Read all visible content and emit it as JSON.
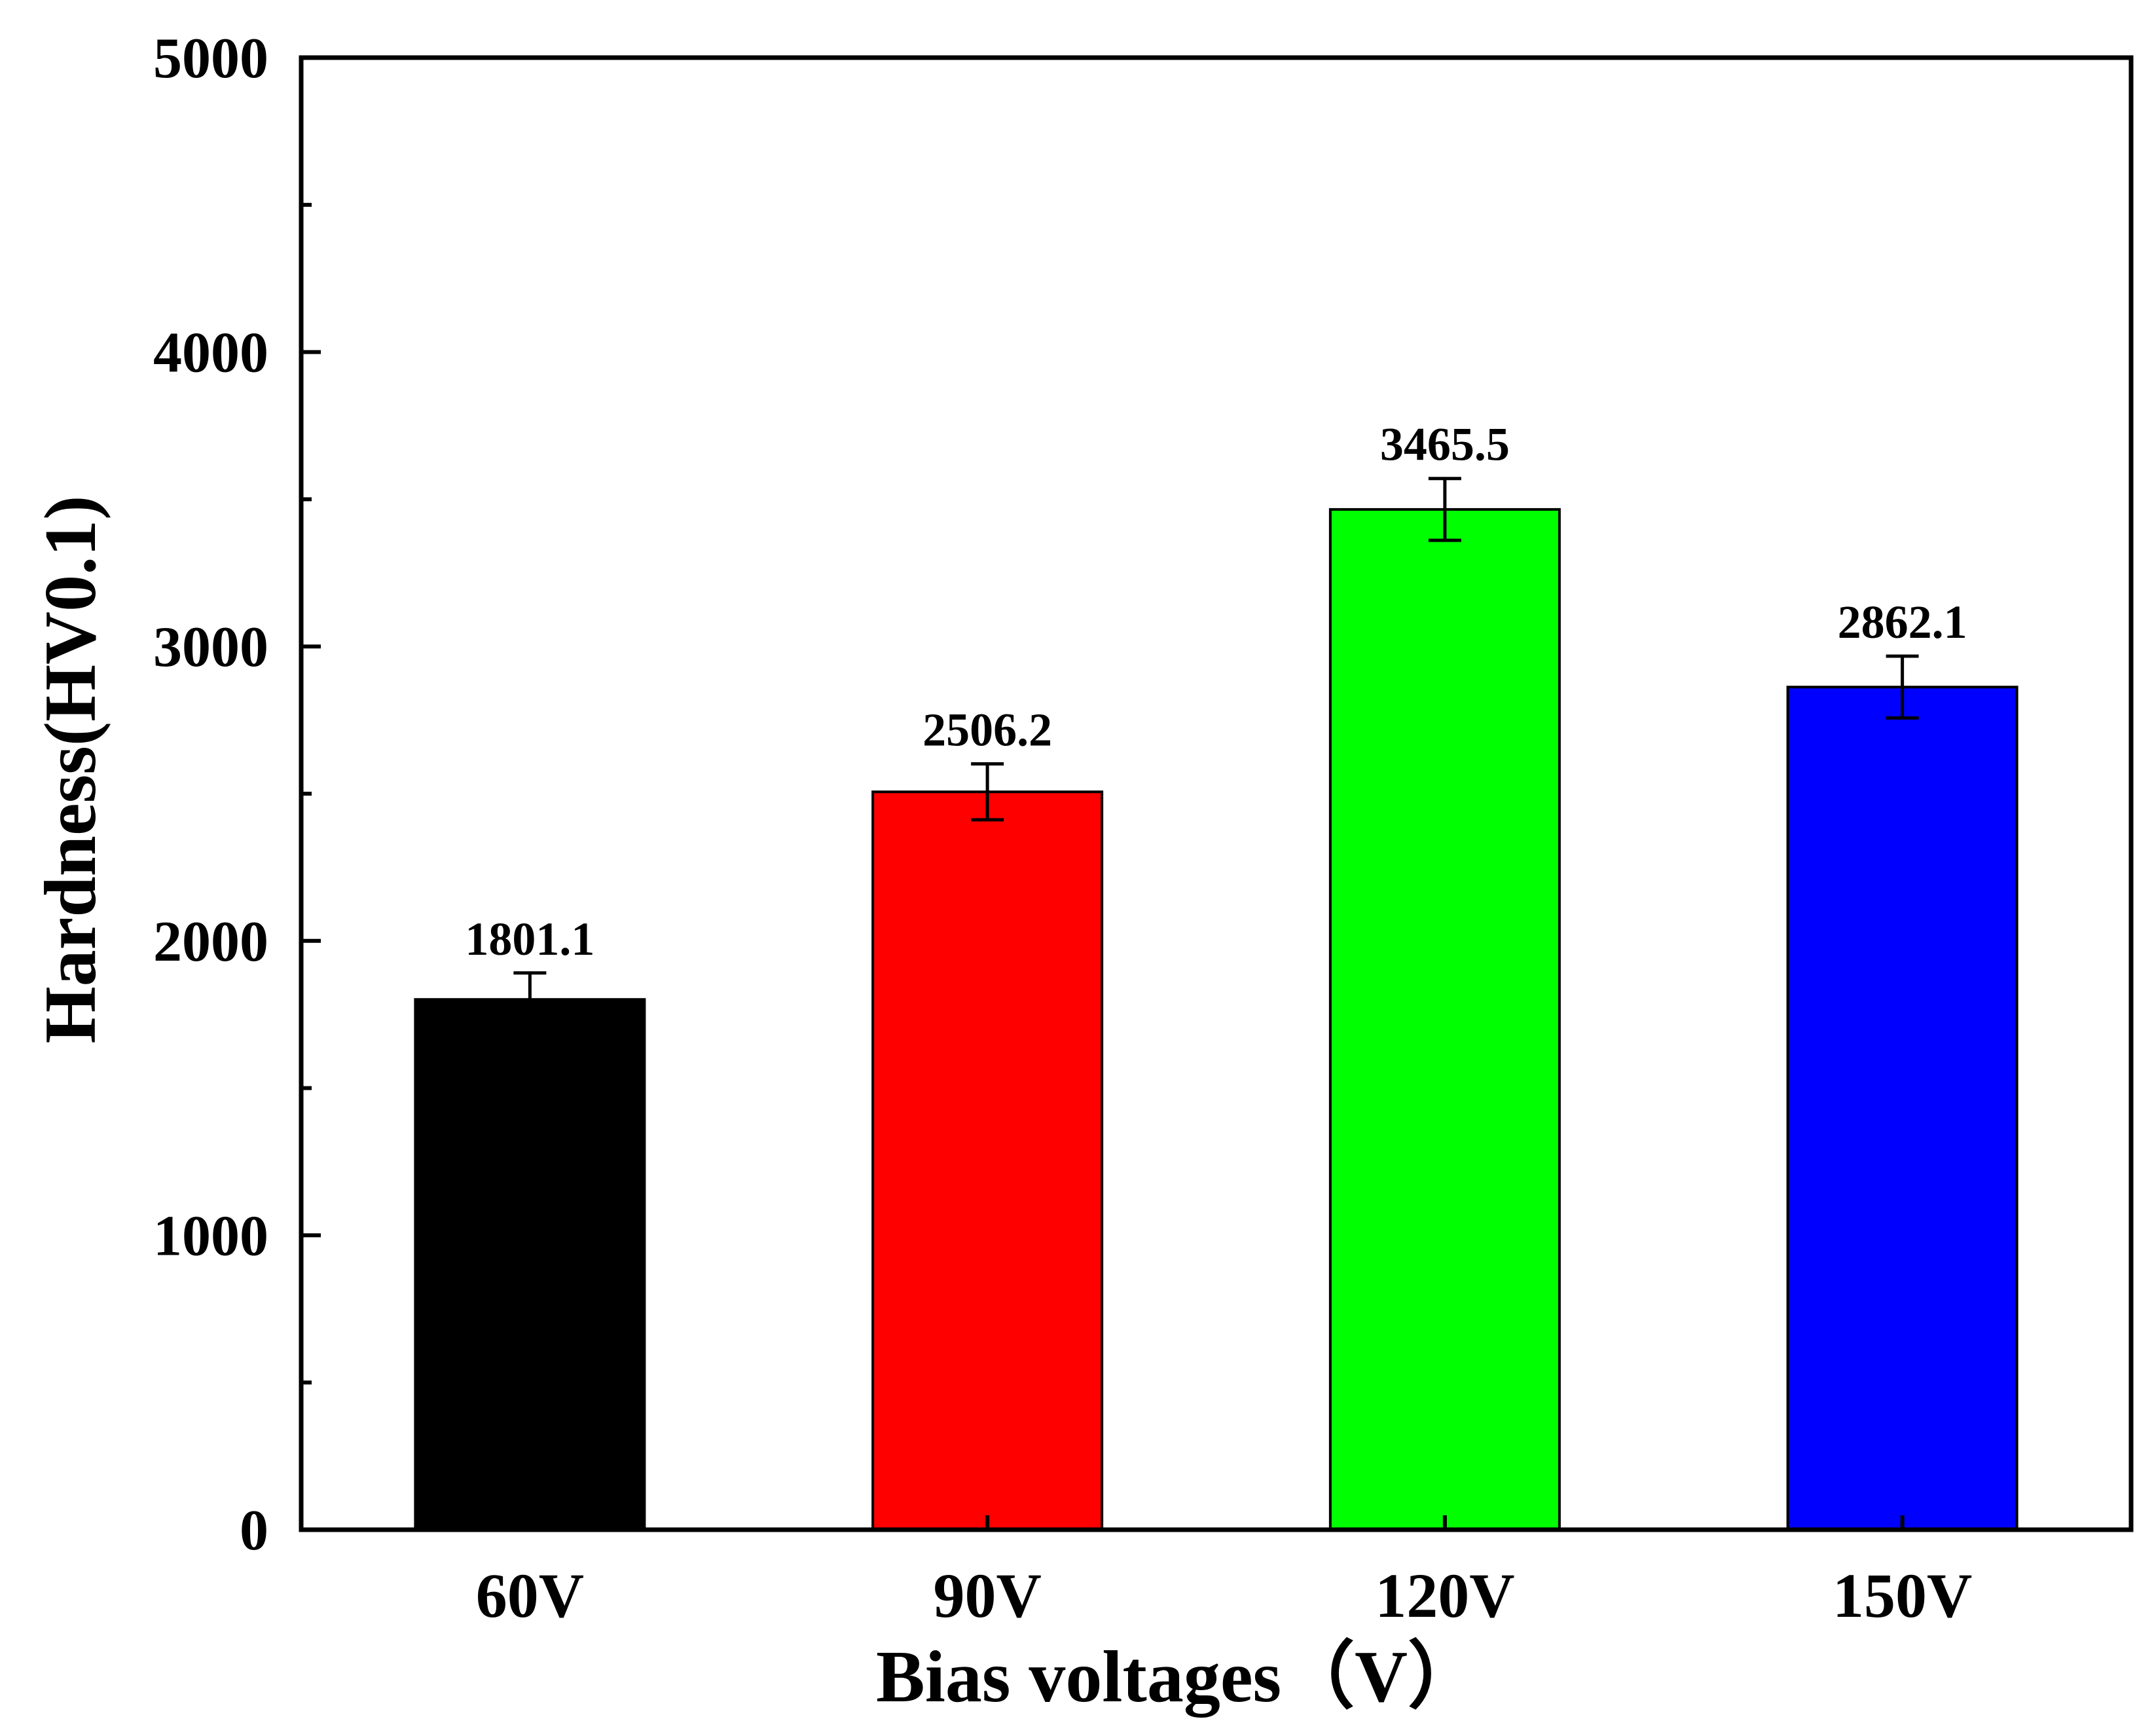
{
  "chart_data": {
    "type": "bar",
    "title": "",
    "xlabel": "Bias voltages（V）",
    "ylabel": "Hardness(HV0.1)",
    "categories": [
      "60V",
      "90V",
      "120V",
      "150V"
    ],
    "values": [
      1801.1,
      2506.2,
      3465.5,
      2862.1
    ],
    "errors": [
      90,
      95,
      105,
      105
    ],
    "value_labels": [
      "1801.1",
      "2506.2",
      "3465.5",
      "2862.1"
    ],
    "colors": [
      "#000000",
      "#ff0000",
      "#00ff00",
      "#0000ff"
    ],
    "ylim": [
      0,
      5000
    ],
    "yticks": [
      0,
      1000,
      2000,
      3000,
      4000,
      5000
    ],
    "ytick_labels": [
      "0",
      "1000",
      "2000",
      "3000",
      "4000",
      "5000"
    ],
    "minor_ytick_step": 500,
    "grid": false,
    "legend": "none"
  }
}
